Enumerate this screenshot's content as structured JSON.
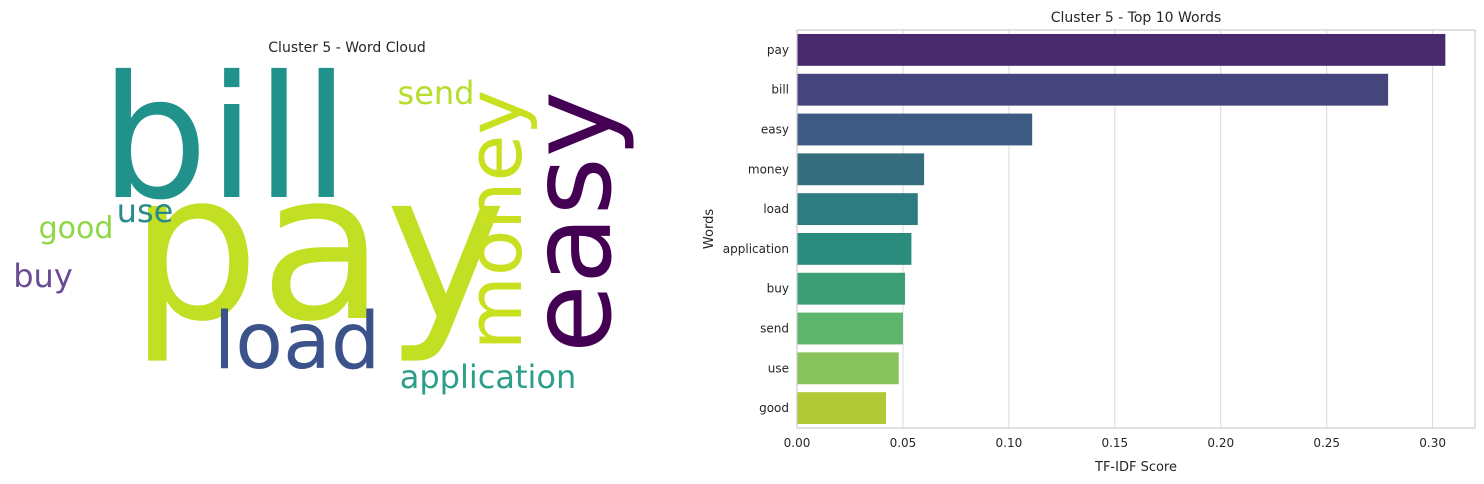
{
  "chart_data": [
    {
      "type": "wordcloud",
      "title": "Cluster 5 - Word Cloud",
      "words": [
        {
          "text": "pay",
          "color": "#c2df23"
        },
        {
          "text": "bill",
          "color": "#21918c"
        },
        {
          "text": "easy",
          "color": "#440154"
        },
        {
          "text": "money",
          "color": "#c8e020"
        },
        {
          "text": "load",
          "color": "#3b528b"
        },
        {
          "text": "application",
          "color": "#2c9f8b"
        },
        {
          "text": "send",
          "color": "#b5de2b"
        },
        {
          "text": "use",
          "color": "#2a8a8b"
        },
        {
          "text": "good",
          "color": "#8fd744"
        },
        {
          "text": "buy",
          "color": "#6a4c93"
        }
      ]
    },
    {
      "type": "bar",
      "orientation": "horizontal",
      "title": "Cluster 5 - Top 10 Words",
      "xlabel": "TF-IDF Score",
      "ylabel": "Words",
      "categories": [
        "pay",
        "bill",
        "easy",
        "money",
        "load",
        "application",
        "buy",
        "send",
        "use",
        "good"
      ],
      "values": [
        0.306,
        0.279,
        0.111,
        0.06,
        0.057,
        0.054,
        0.051,
        0.05,
        0.048,
        0.042
      ],
      "colors": [
        "#482a6c",
        "#46457b",
        "#3d5a82",
        "#356e7f",
        "#2e7b82",
        "#2a8c7c",
        "#3b9e75",
        "#5db56d",
        "#88c25a",
        "#b0c935"
      ],
      "xlim": [
        0,
        0.32
      ],
      "xticks": [
        "0.00",
        "0.05",
        "0.10",
        "0.15",
        "0.20",
        "0.25",
        "0.30"
      ],
      "grid": true
    }
  ]
}
